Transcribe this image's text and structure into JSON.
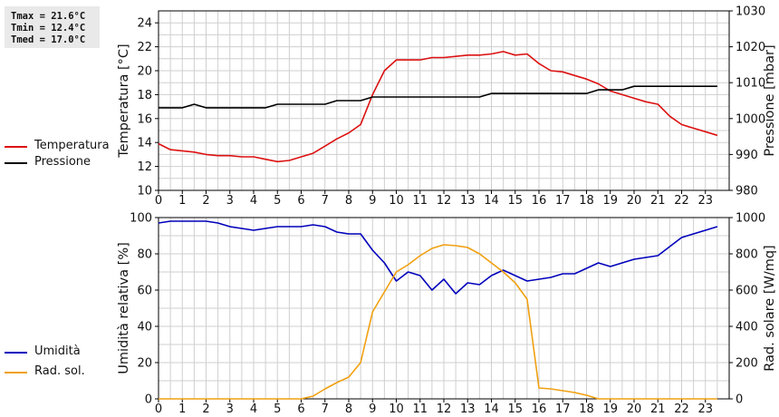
{
  "stats": {
    "tmax": "Tmax = 21.6°C",
    "tmin": "Tmin = 12.4°C",
    "tmed": "Tmed = 17.0°C"
  },
  "legend": {
    "temp": "Temperatura",
    "press": "Pressione",
    "umid": "Umidità",
    "rad": "Rad. sol."
  },
  "colors": {
    "temp": "#dd1111",
    "press": "#000000",
    "umid": "#0000bb",
    "rad": "#f0a010",
    "grid": "#cfcfcf"
  },
  "chart_data": [
    {
      "type": "line",
      "x_ticks": [
        0,
        1,
        2,
        3,
        4,
        5,
        6,
        7,
        8,
        9,
        10,
        11,
        12,
        13,
        14,
        15,
        16,
        17,
        18,
        19,
        20,
        21,
        22,
        23
      ],
      "xlim": [
        0,
        24
      ],
      "ylabel_left": "Temperatura [°C]",
      "ylabel_right": "Pressione [mbar]",
      "ylim_left": [
        10,
        25
      ],
      "ylim_right": [
        980,
        1030
      ],
      "yticks_left": [
        10,
        12,
        14,
        16,
        18,
        20,
        22,
        24
      ],
      "yticks_right": [
        980,
        990,
        1000,
        1010,
        1020,
        1030
      ],
      "grid": true,
      "series": [
        {
          "name": "Temperatura",
          "axis": "left",
          "x": [
            0,
            0.5,
            1,
            1.5,
            2,
            2.5,
            3,
            3.5,
            4,
            4.5,
            5,
            5.5,
            6,
            6.5,
            7,
            7.5,
            8,
            8.5,
            9,
            9.5,
            10,
            10.5,
            11,
            11.5,
            12,
            12.5,
            13,
            13.5,
            14,
            14.5,
            15,
            15.5,
            16,
            16.5,
            17,
            17.5,
            18,
            18.5,
            19,
            19.5,
            20,
            20.5,
            21,
            21.5,
            22,
            22.5,
            23,
            23.5
          ],
          "y": [
            13.9,
            13.4,
            13.3,
            13.2,
            13.0,
            12.9,
            12.9,
            12.8,
            12.8,
            12.6,
            12.4,
            12.5,
            12.8,
            13.1,
            13.7,
            14.3,
            14.8,
            15.5,
            18.0,
            20.0,
            20.9,
            20.9,
            20.9,
            21.1,
            21.1,
            21.2,
            21.3,
            21.3,
            21.4,
            21.6,
            21.3,
            21.4,
            20.6,
            20.0,
            19.9,
            19.6,
            19.3,
            18.9,
            18.3,
            18.0,
            17.7,
            17.4,
            17.2,
            16.2,
            15.5,
            15.2,
            14.9,
            14.6
          ]
        },
        {
          "name": "Pressione",
          "axis": "right",
          "x": [
            0,
            0.5,
            1,
            1.5,
            2,
            2.5,
            3,
            3.5,
            4,
            4.5,
            5,
            5.5,
            6,
            6.5,
            7,
            7.5,
            8,
            8.5,
            9,
            9.5,
            10,
            10.5,
            11,
            11.5,
            12,
            12.5,
            13,
            13.5,
            14,
            14.5,
            15,
            15.5,
            16,
            16.5,
            17,
            17.5,
            18,
            18.5,
            19,
            19.5,
            20,
            20.5,
            21,
            21.5,
            22,
            22.5,
            23,
            23.5
          ],
          "y": [
            1003,
            1003,
            1003,
            1004,
            1003,
            1003,
            1003,
            1003,
            1003,
            1003,
            1004,
            1004,
            1004,
            1004,
            1004,
            1005,
            1005,
            1005,
            1006,
            1006,
            1006,
            1006,
            1006,
            1006,
            1006,
            1006,
            1006,
            1006,
            1007,
            1007,
            1007,
            1007,
            1007,
            1007,
            1007,
            1007,
            1007,
            1008,
            1008,
            1008,
            1009,
            1009,
            1009,
            1009,
            1009,
            1009,
            1009,
            1009
          ]
        }
      ]
    },
    {
      "type": "line",
      "x_ticks": [
        0,
        1,
        2,
        3,
        4,
        5,
        6,
        7,
        8,
        9,
        10,
        11,
        12,
        13,
        14,
        15,
        16,
        17,
        18,
        19,
        20,
        21,
        22,
        23
      ],
      "xlim": [
        0,
        24
      ],
      "ylabel_left": "Umidità relativa [%]",
      "ylabel_right": "Rad. solare [W/mq]",
      "ylim_left": [
        0,
        100
      ],
      "ylim_right": [
        0,
        1000
      ],
      "yticks_left": [
        0,
        20,
        40,
        60,
        80,
        100
      ],
      "yticks_right": [
        0,
        200,
        400,
        600,
        800,
        1000
      ],
      "grid": true,
      "series": [
        {
          "name": "Umidità",
          "axis": "left",
          "x": [
            0,
            0.5,
            1,
            1.5,
            2,
            2.5,
            3,
            3.5,
            4,
            4.5,
            5,
            5.5,
            6,
            6.5,
            7,
            7.5,
            8,
            8.5,
            9,
            9.5,
            10,
            10.5,
            11,
            11.5,
            12,
            12.5,
            13,
            13.5,
            14,
            14.5,
            15,
            15.5,
            16,
            16.5,
            17,
            17.5,
            18,
            18.5,
            19,
            19.5,
            20,
            20.5,
            21,
            21.5,
            22,
            22.5,
            23,
            23.5
          ],
          "y": [
            97,
            98,
            98,
            98,
            98,
            97,
            95,
            94,
            93,
            94,
            95,
            95,
            95,
            96,
            95,
            92,
            91,
            91,
            82,
            75,
            65,
            70,
            68,
            60,
            66,
            58,
            64,
            63,
            68,
            71,
            68,
            65,
            66,
            67,
            69,
            69,
            72,
            75,
            73,
            75,
            77,
            78,
            79,
            84,
            89,
            91,
            93,
            95
          ]
        },
        {
          "name": "Rad. sol.",
          "axis": "right",
          "x": [
            0,
            0.5,
            1,
            1.5,
            2,
            2.5,
            3,
            3.5,
            4,
            4.5,
            5,
            5.5,
            6,
            6.5,
            7,
            7.5,
            8,
            8.5,
            9,
            9.5,
            10,
            10.5,
            11,
            11.5,
            12,
            12.5,
            13,
            13.5,
            14,
            14.5,
            15,
            15.5,
            16,
            16.5,
            17,
            17.5,
            18,
            18.5,
            19,
            19.5,
            20,
            20.5,
            21,
            21.5,
            22,
            22.5,
            23,
            23.5
          ],
          "y": [
            0,
            0,
            0,
            0,
            0,
            0,
            0,
            0,
            0,
            0,
            0,
            0,
            0,
            15,
            55,
            90,
            120,
            200,
            480,
            590,
            700,
            740,
            790,
            830,
            850,
            845,
            835,
            800,
            750,
            700,
            640,
            550,
            60,
            55,
            45,
            35,
            20,
            0,
            0,
            0,
            0,
            0,
            0,
            0,
            0,
            0,
            0,
            0
          ]
        }
      ]
    }
  ]
}
